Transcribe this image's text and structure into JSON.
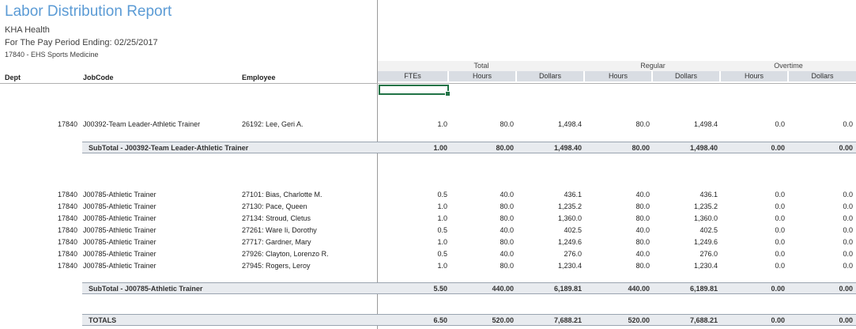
{
  "report": {
    "title": "Labor Distribution Report",
    "org": "KHA Health",
    "period": "For The Pay Period Ending: 02/25/2017",
    "department": "17840 - EHS Sports Medicine"
  },
  "headers": {
    "dept": "Dept",
    "jobcode": "JobCode",
    "employee": "Employee",
    "group_total": "Total",
    "group_regular": "Regular",
    "group_overtime": "Overtime",
    "columns": [
      "FTEs",
      "Hours",
      "Dollars",
      "Hours",
      "Dollars",
      "Hours",
      "Dollars"
    ]
  },
  "group1": {
    "rows": [
      {
        "dept": "17840",
        "jobcode": "J00392-Team Leader-Athletic Trainer",
        "employee": "26192: Lee, Geri A.",
        "vals": [
          "1.0",
          "80.0",
          "1,498.4",
          "80.0",
          "1,498.4",
          "0.0",
          "0.0"
        ]
      }
    ],
    "subtotal": {
      "label": "SubTotal - J00392-Team Leader-Athletic Trainer",
      "vals": [
        "1.00",
        "80.00",
        "1,498.40",
        "80.00",
        "1,498.40",
        "0.00",
        "0.00"
      ]
    }
  },
  "group2": {
    "rows": [
      {
        "dept": "17840",
        "jobcode": "J00785-Athletic Trainer",
        "employee": "27101: Bias, Charlotte M.",
        "vals": [
          "0.5",
          "40.0",
          "436.1",
          "40.0",
          "436.1",
          "0.0",
          "0.0"
        ]
      },
      {
        "dept": "17840",
        "jobcode": "J00785-Athletic Trainer",
        "employee": "27130: Pace, Queen",
        "vals": [
          "1.0",
          "80.0",
          "1,235.2",
          "80.0",
          "1,235.2",
          "0.0",
          "0.0"
        ]
      },
      {
        "dept": "17840",
        "jobcode": "J00785-Athletic Trainer",
        "employee": "27134: Stroud, Cletus",
        "vals": [
          "1.0",
          "80.0",
          "1,360.0",
          "80.0",
          "1,360.0",
          "0.0",
          "0.0"
        ]
      },
      {
        "dept": "17840",
        "jobcode": "J00785-Athletic Trainer",
        "employee": "27261: Ware Ii, Dorothy",
        "vals": [
          "0.5",
          "40.0",
          "402.5",
          "40.0",
          "402.5",
          "0.0",
          "0.0"
        ]
      },
      {
        "dept": "17840",
        "jobcode": "J00785-Athletic Trainer",
        "employee": "27717: Gardner, Mary",
        "vals": [
          "1.0",
          "80.0",
          "1,249.6",
          "80.0",
          "1,249.6",
          "0.0",
          "0.0"
        ]
      },
      {
        "dept": "17840",
        "jobcode": "J00785-Athletic Trainer",
        "employee": "27926: Clayton, Lorenzo R.",
        "vals": [
          "0.5",
          "40.0",
          "276.0",
          "40.0",
          "276.0",
          "0.0",
          "0.0"
        ]
      },
      {
        "dept": "17840",
        "jobcode": "J00785-Athletic Trainer",
        "employee": "27945: Rogers, Leroy",
        "vals": [
          "1.0",
          "80.0",
          "1,230.4",
          "80.0",
          "1,230.4",
          "0.0",
          "0.0"
        ]
      }
    ],
    "subtotal": {
      "label": "SubTotal - J00785-Athletic Trainer",
      "vals": [
        "5.50",
        "440.00",
        "6,189.81",
        "440.00",
        "6,189.81",
        "0.00",
        "0.00"
      ]
    }
  },
  "totals": {
    "label": "TOTALS",
    "vals": [
      "6.50",
      "520.00",
      "7,688.21",
      "520.00",
      "7,688.21",
      "0.00",
      "0.00"
    ]
  }
}
